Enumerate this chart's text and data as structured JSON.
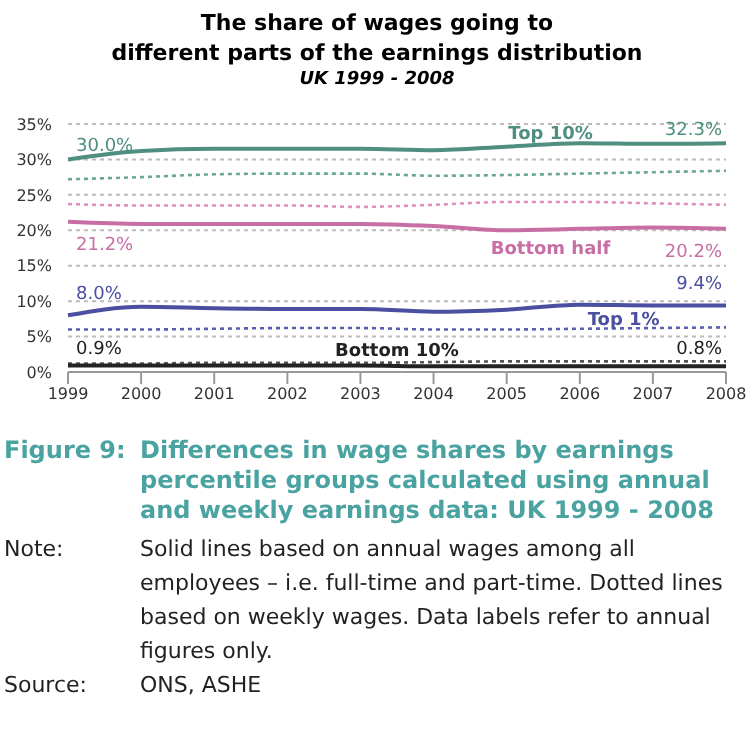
{
  "chart_data": {
    "type": "line",
    "title": "The share of wages going to\ndifferent parts of the earnings distribution",
    "subtitle": "UK 1999 - 2008",
    "categories": [
      "1999",
      "2000",
      "2001",
      "2002",
      "2003",
      "2004",
      "2005",
      "2006",
      "2007",
      "2008"
    ],
    "series": [
      {
        "name": "Top 10%",
        "color": "#4f8f80",
        "line_style": "solid",
        "values": [
          30.0,
          31.2,
          31.5,
          31.5,
          31.5,
          31.3,
          31.8,
          32.3,
          32.2,
          32.3
        ],
        "value_labels": [
          "30.0%",
          null,
          null,
          null,
          null,
          null,
          null,
          null,
          null,
          "32.3%"
        ]
      },
      {
        "color": "#6aa596",
        "line_style": "dotted",
        "values": [
          27.2,
          27.5,
          27.9,
          28.0,
          28.0,
          27.7,
          27.8,
          28.0,
          28.2,
          28.4
        ]
      },
      {
        "color": "#e08fbf",
        "line_style": "dotted",
        "values": [
          23.7,
          23.5,
          23.5,
          23.5,
          23.3,
          23.6,
          24.0,
          24.0,
          23.8,
          23.6
        ]
      },
      {
        "name": "Bottom half",
        "color": "#c76fa5",
        "line_style": "solid",
        "values": [
          21.2,
          20.9,
          20.9,
          20.9,
          20.9,
          20.6,
          20.0,
          20.2,
          20.4,
          20.2
        ],
        "value_labels": [
          "21.2%",
          null,
          null,
          null,
          null,
          null,
          null,
          null,
          null,
          "20.2%"
        ]
      },
      {
        "name": "Top 1%",
        "color": "#4a4fa0",
        "line_style": "solid",
        "values": [
          8.0,
          9.2,
          9.0,
          8.9,
          8.9,
          8.5,
          8.8,
          9.5,
          9.4,
          9.4
        ],
        "value_labels": [
          "8.0%",
          null,
          null,
          null,
          null,
          null,
          null,
          null,
          null,
          "9.4%"
        ]
      },
      {
        "color": "#5a5fb0",
        "line_style": "dotted",
        "values": [
          6.0,
          6.0,
          6.1,
          6.2,
          6.2,
          6.0,
          6.0,
          6.1,
          6.2,
          6.3
        ]
      },
      {
        "color": "#555555",
        "line_style": "dotted",
        "values": [
          1.2,
          1.2,
          1.3,
          1.3,
          1.3,
          1.4,
          1.5,
          1.5,
          1.5,
          1.5
        ]
      },
      {
        "name": "Bottom 10%",
        "color": "#222222",
        "line_style": "solid",
        "values": [
          0.9,
          0.9,
          0.9,
          0.9,
          0.9,
          0.8,
          0.8,
          0.8,
          0.8,
          0.8
        ],
        "value_labels": [
          "0.9%",
          null,
          null,
          null,
          null,
          null,
          null,
          null,
          null,
          "0.8%"
        ]
      }
    ],
    "ylim": [
      0,
      35
    ],
    "yticks": [
      {
        "value": 0,
        "label": "0%"
      },
      {
        "value": 5,
        "label": "5%"
      },
      {
        "value": 10,
        "label": "10%"
      },
      {
        "value": 15,
        "label": "15%"
      },
      {
        "value": 20,
        "label": "20%"
      },
      {
        "value": 25,
        "label": "25%"
      },
      {
        "value": 30,
        "label": "30%"
      },
      {
        "value": 35,
        "label": "35%"
      }
    ],
    "grid": "y",
    "annotations": [
      "Figure 9:\tDifferences in wage shares by earnings percentile groups calculated using annual and weekly earnings data: UK 1999 - 2008",
      "Note:\tSolid lines based on annual wages among all employees – i.e. full-time and part-time. Dotted lines based on weekly wages. Data labels refer to annual figures only.",
      "Source:\tONS, ASHE"
    ]
  }
}
